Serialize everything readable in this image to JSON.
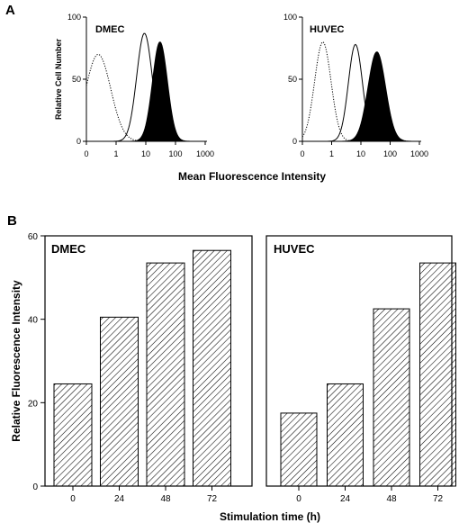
{
  "panels": {
    "A": "A",
    "B": "B"
  },
  "chart_data": [
    {
      "type": "area",
      "panel": "A",
      "label": "DMEC",
      "xscale": "log",
      "xlim": [
        0,
        1000
      ],
      "ylim": [
        0,
        100
      ],
      "xticks": [
        "0",
        "1",
        "10",
        "100",
        "1000"
      ],
      "yticks": [
        "0",
        "50",
        "100"
      ],
      "ylabel": "Relative Cell Number",
      "xlabel": "Mean Fluorescence Intensity",
      "series": [
        {
          "style": "dotted",
          "peak_x": 0.25,
          "peak_y": 70,
          "spread": 0.42
        },
        {
          "style": "solid",
          "peak_x": 9,
          "peak_y": 87,
          "spread": 0.26
        },
        {
          "style": "filled",
          "peak_x": 30,
          "peak_y": 80,
          "spread": 0.25
        }
      ]
    },
    {
      "type": "area",
      "panel": "A",
      "label": "HUVEC",
      "xscale": "log",
      "xlim": [
        0,
        1000
      ],
      "ylim": [
        0,
        100
      ],
      "xticks": [
        "0",
        "1",
        "10",
        "100",
        "1000"
      ],
      "yticks": [
        "0",
        "50",
        "100"
      ],
      "ylabel": "",
      "xlabel": "Mean Fluorescence Intensity",
      "series": [
        {
          "style": "dotted",
          "peak_x": 0.5,
          "peak_y": 80,
          "spread": 0.28
        },
        {
          "style": "solid",
          "peak_x": 6.5,
          "peak_y": 78,
          "spread": 0.24
        },
        {
          "style": "filled",
          "peak_x": 35,
          "peak_y": 72,
          "spread": 0.3
        }
      ]
    },
    {
      "type": "bar",
      "panel": "B",
      "label": "DMEC",
      "categories": [
        "0",
        "24",
        "48",
        "72"
      ],
      "values": [
        24.5,
        40.5,
        53.5,
        56.5
      ],
      "ylim": [
        0,
        60
      ],
      "yticks": [
        "0",
        "20",
        "40",
        "60"
      ],
      "ylabel": "Relative Fluorescence Intensity",
      "xlabel": "Stimulation time (h)",
      "pattern": "hatched"
    },
    {
      "type": "bar",
      "panel": "B",
      "label": "HUVEC",
      "categories": [
        "0",
        "24",
        "48",
        "72"
      ],
      "values": [
        17.5,
        24.5,
        42.5,
        53.5
      ],
      "ylim": [
        0,
        60
      ],
      "yticks": [],
      "ylabel": "",
      "xlabel": "Stimulation time (h)",
      "pattern": "hatched"
    }
  ]
}
